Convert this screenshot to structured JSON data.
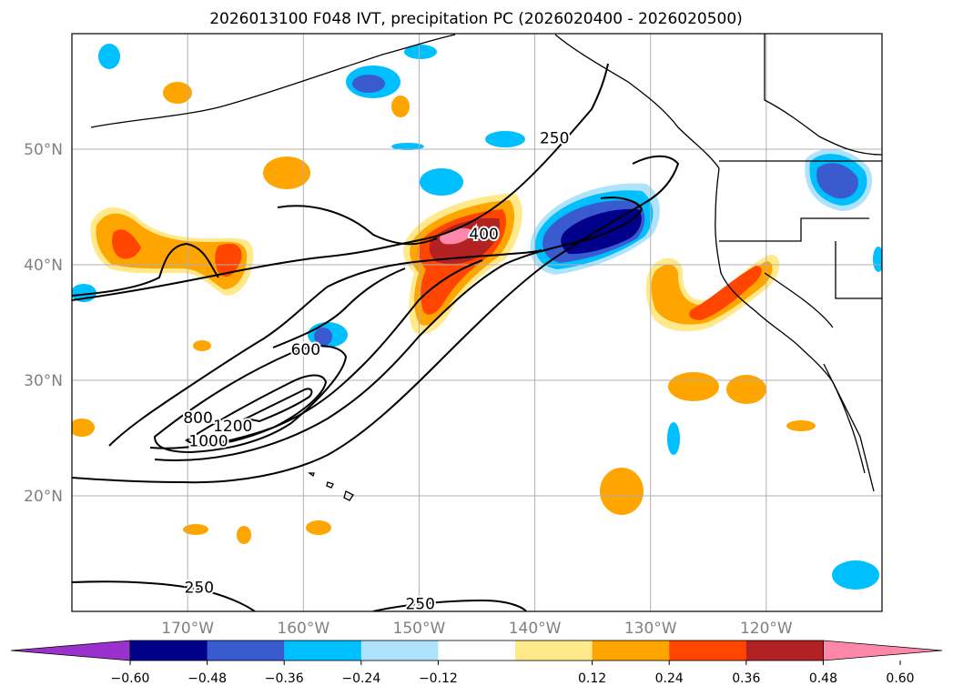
{
  "chart_data": {
    "type": "map",
    "title": "2026013100 F048 IVT, precipitation PC (2026020400 - 2026020500)",
    "map": {
      "lon_range": [
        -180,
        -110
      ],
      "lat_range": [
        10,
        60
      ],
      "x_ticks": [
        {
          "lon": -170,
          "label": "170°W"
        },
        {
          "lon": -160,
          "label": "160°W"
        },
        {
          "lon": -150,
          "label": "150°W"
        },
        {
          "lon": -140,
          "label": "140°W"
        },
        {
          "lon": -130,
          "label": "130°W"
        },
        {
          "lon": -120,
          "label": "120°W"
        }
      ],
      "y_ticks": [
        {
          "lat": 20,
          "label": "20°N"
        },
        {
          "lat": 30,
          "label": "30°N"
        },
        {
          "lat": 40,
          "label": "40°N"
        },
        {
          "lat": 50,
          "label": "50°N"
        }
      ],
      "grid": true
    },
    "ivt_contour_levels": [
      250,
      400,
      600,
      800,
      1000,
      1200
    ],
    "contour_labels": [
      {
        "text": "250",
        "lon": -138.3,
        "lat": 50.9
      },
      {
        "text": "400",
        "lon": -144.4,
        "lat": 42.6
      },
      {
        "text": "600",
        "lon": -159.8,
        "lat": 32.6
      },
      {
        "text": "800",
        "lon": -169.1,
        "lat": 26.7
      },
      {
        "text": "1200",
        "lon": -166.1,
        "lat": 26.0
      },
      {
        "text": "1000",
        "lon": -168.2,
        "lat": 24.7
      },
      {
        "text": "250",
        "lon": -169.0,
        "lat": 12.0
      },
      {
        "text": "250",
        "lon": -149.9,
        "lat": 10.6
      }
    ],
    "colorbar": {
      "tick_labels": [
        "−0.60",
        "−0.48",
        "−0.36",
        "−0.24",
        "−0.12",
        "0.12",
        "0.24",
        "0.36",
        "0.48",
        "0.60"
      ],
      "colors": [
        "#9932cc",
        "#00008b",
        "#3a5bd0",
        "#00bfff",
        "#aee3fb",
        "#ffffff",
        "#ffe98a",
        "#ffa500",
        "#ff4500",
        "#b22222",
        "#ff88aa"
      ],
      "extend": "both"
    }
  }
}
